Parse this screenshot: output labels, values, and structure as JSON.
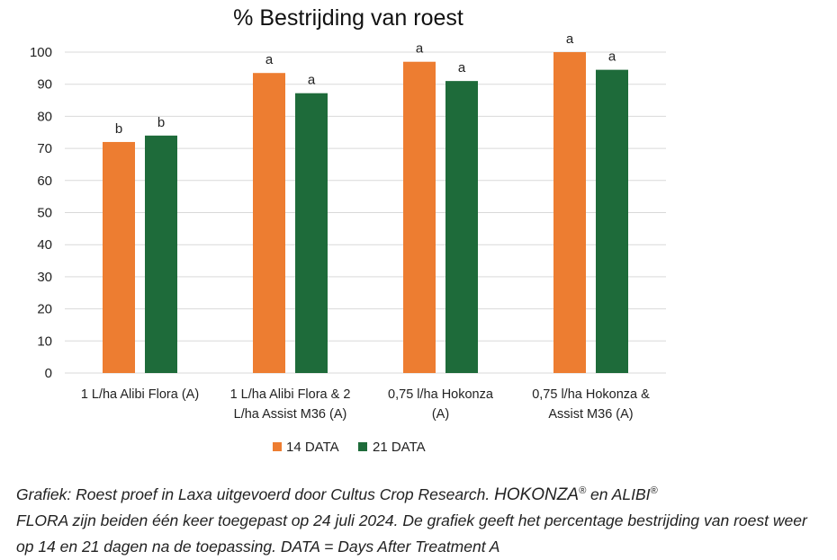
{
  "chart_data": {
    "type": "bar",
    "title": "% Bestrijding van roest",
    "categories": [
      [
        "1 L/ha Alibi Flora (A)"
      ],
      [
        "1 L/ha Alibi Flora & 2",
        "L/ha Assist M36 (A)"
      ],
      [
        "0,75 l/ha Hokonza",
        "(A)"
      ],
      [
        "0,75 l/ha Hokonza &",
        "Assist M36 (A)"
      ]
    ],
    "series": [
      {
        "name": "14 DATA",
        "color": "#ED7D31",
        "values": [
          72,
          93.5,
          97,
          100
        ],
        "labels": [
          "b",
          "a",
          "a",
          "a"
        ]
      },
      {
        "name": "21 DATA",
        "color": "#1E6B3A",
        "values": [
          74,
          87.2,
          91,
          94.5
        ],
        "labels": [
          "b",
          "a",
          "a",
          "a"
        ]
      }
    ],
    "ylim": [
      0,
      100
    ],
    "yticks": [
      0,
      10,
      20,
      30,
      40,
      50,
      60,
      70,
      80,
      90,
      100
    ],
    "grid": true,
    "legend": "bottom"
  },
  "caption": {
    "part1": "Grafiek: Roest proef in Laxa uitgevoerd door Cultus Crop Research. ",
    "brand1": "HOKONZA",
    "reg": "®",
    "mid": " en ",
    "brand2": "ALIBI",
    "part2": "FLORA zijn beiden één keer toegepast op 24 juli 2024. De grafiek geeft het percentage bestrijding van roest weer op 14 en 21 dagen na de toepassing. DATA = Days After Treatment A"
  }
}
